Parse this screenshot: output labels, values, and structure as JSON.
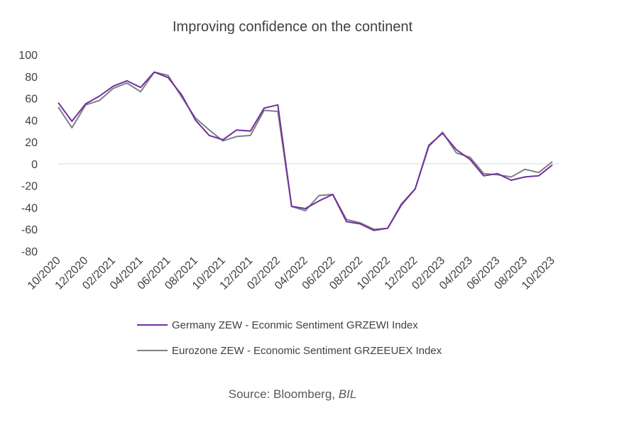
{
  "chart_data": {
    "type": "line",
    "title": "Improving confidence on the continent",
    "ylim": [
      -80,
      100
    ],
    "y_ticks": [
      100,
      80,
      60,
      40,
      20,
      0,
      -20,
      -40,
      -60,
      -80
    ],
    "grid": false,
    "x": [
      "10/2020",
      "11/2020",
      "12/2020",
      "01/2021",
      "02/2021",
      "03/2021",
      "04/2021",
      "05/2021",
      "06/2021",
      "07/2021",
      "08/2021",
      "09/2021",
      "10/2021",
      "11/2021",
      "12/2021",
      "01/2022",
      "02/2022",
      "03/2022",
      "04/2022",
      "05/2022",
      "06/2022",
      "07/2022",
      "08/2022",
      "09/2022",
      "10/2022",
      "11/2022",
      "12/2022",
      "01/2023",
      "02/2023",
      "03/2023",
      "04/2023",
      "05/2023",
      "06/2023",
      "07/2023",
      "08/2023",
      "09/2023",
      "10/2023"
    ],
    "x_tick_labels": [
      "10/2020",
      "12/2020",
      "02/2021",
      "04/2021",
      "06/2021",
      "08/2021",
      "10/2021",
      "12/2021",
      "02/2022",
      "04/2022",
      "06/2022",
      "08/2022",
      "10/2022",
      "12/2022",
      "02/2023",
      "04/2023",
      "06/2023",
      "08/2023",
      "10/2023"
    ],
    "legend_position": "bottom",
    "series": [
      {
        "name": "Germany ZEW - Econmic Sentiment GRZEWI Index",
        "color": "#7030A0",
        "values": [
          56,
          39,
          55,
          62,
          71,
          76,
          70,
          84,
          79,
          63,
          40,
          26,
          22,
          31,
          30,
          51,
          54,
          -39,
          -41,
          -34,
          -28,
          -53,
          -55,
          -61,
          -59,
          -37,
          -23,
          17,
          28,
          13,
          4,
          -11,
          -9,
          -15,
          -12,
          -11,
          -1
        ]
      },
      {
        "name": "Eurozone ZEW - Economic Sentiment GRZEEUEX Index",
        "color": "#808080",
        "values": [
          52,
          33,
          54,
          58,
          69,
          74,
          66,
          84,
          81,
          61,
          42,
          31,
          21,
          25,
          26,
          49,
          48,
          -39,
          -43,
          -29,
          -28,
          -51,
          -54,
          -60,
          -59,
          -38,
          -23,
          16,
          29,
          10,
          6,
          -9,
          -10,
          -12,
          -5,
          -8,
          2
        ]
      }
    ]
  },
  "source": {
    "prefix": "Source: Bloomberg, ",
    "emphasis": "BIL"
  }
}
